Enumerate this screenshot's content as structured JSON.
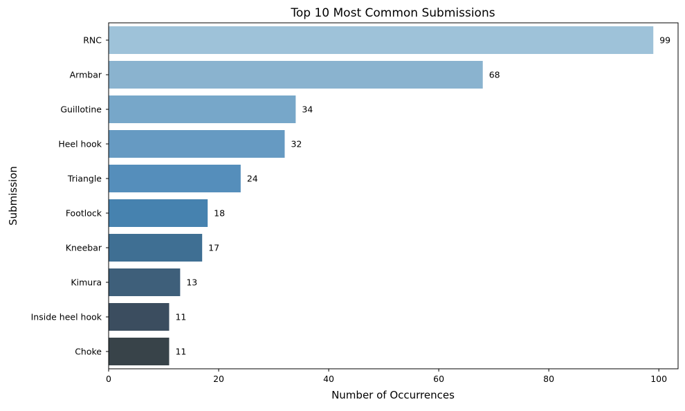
{
  "chart_data": {
    "type": "bar",
    "orientation": "horizontal",
    "title": "Top 10 Most Common Submissions",
    "xlabel": "Number of Occurrences",
    "ylabel": "Submission",
    "categories": [
      "RNC",
      "Armbar",
      "Guillotine",
      "Heel hook",
      "Triangle",
      "Footlock",
      "Kneebar",
      "Kimura",
      "Inside heel hook",
      "Choke"
    ],
    "values": [
      99,
      68,
      34,
      32,
      24,
      18,
      17,
      13,
      11,
      11
    ],
    "colors": [
      "#9ec2d9",
      "#8ab3cf",
      "#77a7c9",
      "#669ac2",
      "#558ebb",
      "#4682af",
      "#3f6f93",
      "#3e5f7a",
      "#3b4d5f",
      "#384349"
    ],
    "xlim": [
      0,
      103.5
    ],
    "xticks": [
      0,
      20,
      40,
      60,
      80,
      100
    ],
    "grid": false,
    "legend": "none"
  }
}
